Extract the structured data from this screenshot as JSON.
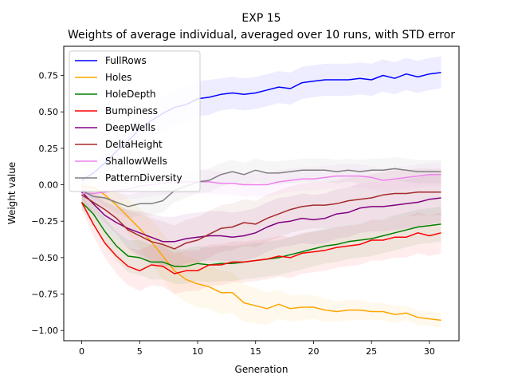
{
  "chart_data": {
    "type": "line",
    "title": "EXP 15",
    "subtitle": "Weights of average individual, averaged over 10 runs, with STD error",
    "xlabel": "Generation",
    "ylabel": "Weight value",
    "xlim": [
      -1.55,
      32.55
    ],
    "ylim": [
      -1.07,
      0.95
    ],
    "xticks": [
      0,
      5,
      10,
      15,
      20,
      25,
      30
    ],
    "yticks": [
      -1.0,
      -0.75,
      -0.5,
      -0.25,
      0.0,
      0.25,
      0.5,
      0.75
    ],
    "ytick_labels": [
      "−1.00",
      "−0.75",
      "−0.50",
      "−0.25",
      "0.00",
      "0.25",
      "0.50",
      "0.75"
    ],
    "legend_position": "top-left",
    "grid": false,
    "x": [
      0,
      1,
      2,
      3,
      4,
      5,
      6,
      7,
      8,
      9,
      10,
      11,
      12,
      13,
      14,
      15,
      16,
      17,
      18,
      19,
      20,
      21,
      22,
      23,
      24,
      25,
      26,
      27,
      28,
      29,
      30,
      31
    ],
    "series": [
      {
        "name": "FullRows",
        "color": "#0000ff",
        "values": [
          0.03,
          0.08,
          0.15,
          0.23,
          0.3,
          0.38,
          0.44,
          0.49,
          0.53,
          0.55,
          0.59,
          0.6,
          0.62,
          0.63,
          0.62,
          0.63,
          0.65,
          0.67,
          0.66,
          0.7,
          0.71,
          0.72,
          0.72,
          0.72,
          0.73,
          0.72,
          0.75,
          0.73,
          0.76,
          0.74,
          0.76,
          0.77
        ],
        "std": [
          0.05,
          0.06,
          0.08,
          0.1,
          0.11,
          0.12,
          0.12,
          0.12,
          0.12,
          0.12,
          0.12,
          0.12,
          0.11,
          0.11,
          0.11,
          0.11,
          0.11,
          0.11,
          0.11,
          0.11,
          0.11,
          0.11,
          0.11,
          0.11,
          0.11,
          0.11,
          0.11,
          0.11,
          0.11,
          0.11,
          0.11,
          0.11
        ]
      },
      {
        "name": "Holes",
        "color": "#ffa500",
        "values": [
          -0.01,
          -0.02,
          -0.07,
          -0.14,
          -0.22,
          -0.3,
          -0.39,
          -0.49,
          -0.59,
          -0.65,
          -0.68,
          -0.7,
          -0.74,
          -0.74,
          -0.81,
          -0.83,
          -0.85,
          -0.82,
          -0.85,
          -0.84,
          -0.84,
          -0.86,
          -0.87,
          -0.86,
          -0.86,
          -0.87,
          -0.87,
          -0.89,
          -0.88,
          -0.91,
          -0.92,
          -0.93
        ],
        "std": [
          0.05,
          0.06,
          0.08,
          0.1,
          0.12,
          0.14,
          0.15,
          0.16,
          0.16,
          0.16,
          0.16,
          0.15,
          0.15,
          0.14,
          0.13,
          0.12,
          0.11,
          0.1,
          0.09,
          0.09,
          0.08,
          0.08,
          0.07,
          0.07,
          0.07,
          0.06,
          0.06,
          0.06,
          0.05,
          0.05,
          0.05,
          0.05
        ]
      },
      {
        "name": "HoleDepth",
        "color": "#008000",
        "values": [
          -0.12,
          -0.2,
          -0.32,
          -0.42,
          -0.49,
          -0.5,
          -0.53,
          -0.53,
          -0.56,
          -0.56,
          -0.54,
          -0.55,
          -0.54,
          -0.54,
          -0.53,
          -0.52,
          -0.51,
          -0.5,
          -0.48,
          -0.46,
          -0.44,
          -0.42,
          -0.41,
          -0.39,
          -0.38,
          -0.37,
          -0.35,
          -0.33,
          -0.31,
          -0.29,
          -0.28,
          -0.27
        ],
        "std": [
          0.05,
          0.07,
          0.09,
          0.1,
          0.11,
          0.12,
          0.12,
          0.12,
          0.12,
          0.12,
          0.12,
          0.12,
          0.12,
          0.12,
          0.12,
          0.12,
          0.12,
          0.12,
          0.12,
          0.12,
          0.12,
          0.12,
          0.12,
          0.12,
          0.12,
          0.12,
          0.12,
          0.12,
          0.12,
          0.12,
          0.12,
          0.12
        ]
      },
      {
        "name": "Bumpiness",
        "color": "#ff0000",
        "values": [
          -0.12,
          -0.27,
          -0.4,
          -0.49,
          -0.56,
          -0.59,
          -0.55,
          -0.56,
          -0.61,
          -0.59,
          -0.59,
          -0.55,
          -0.55,
          -0.53,
          -0.53,
          -0.52,
          -0.51,
          -0.49,
          -0.5,
          -0.47,
          -0.46,
          -0.45,
          -0.43,
          -0.42,
          -0.41,
          -0.38,
          -0.38,
          -0.36,
          -0.36,
          -0.33,
          -0.35,
          -0.33
        ],
        "std": [
          0.05,
          0.08,
          0.1,
          0.12,
          0.13,
          0.14,
          0.14,
          0.14,
          0.14,
          0.14,
          0.14,
          0.14,
          0.14,
          0.14,
          0.14,
          0.14,
          0.14,
          0.14,
          0.14,
          0.14,
          0.14,
          0.14,
          0.14,
          0.14,
          0.14,
          0.14,
          0.14,
          0.14,
          0.14,
          0.14,
          0.14,
          0.14
        ]
      },
      {
        "name": "DeepWells",
        "color": "#800080",
        "values": [
          -0.05,
          -0.13,
          -0.21,
          -0.26,
          -0.3,
          -0.33,
          -0.36,
          -0.39,
          -0.39,
          -0.37,
          -0.36,
          -0.35,
          -0.35,
          -0.36,
          -0.35,
          -0.33,
          -0.29,
          -0.26,
          -0.25,
          -0.23,
          -0.24,
          -0.23,
          -0.2,
          -0.19,
          -0.16,
          -0.15,
          -0.15,
          -0.14,
          -0.13,
          -0.12,
          -0.1,
          -0.09
        ],
        "std": [
          0.05,
          0.07,
          0.09,
          0.11,
          0.13,
          0.15,
          0.16,
          0.17,
          0.17,
          0.17,
          0.17,
          0.17,
          0.17,
          0.17,
          0.17,
          0.17,
          0.17,
          0.17,
          0.17,
          0.17,
          0.17,
          0.17,
          0.17,
          0.17,
          0.17,
          0.17,
          0.17,
          0.17,
          0.17,
          0.17,
          0.17,
          0.17
        ]
      },
      {
        "name": "DeltaHeight",
        "color": "#a52a2a",
        "values": [
          -0.07,
          -0.12,
          -0.17,
          -0.23,
          -0.31,
          -0.35,
          -0.39,
          -0.41,
          -0.44,
          -0.4,
          -0.38,
          -0.34,
          -0.3,
          -0.29,
          -0.26,
          -0.27,
          -0.23,
          -0.2,
          -0.17,
          -0.15,
          -0.14,
          -0.14,
          -0.13,
          -0.11,
          -0.1,
          -0.09,
          -0.07,
          -0.06,
          -0.06,
          -0.05,
          -0.05,
          -0.05
        ],
        "std": [
          0.05,
          0.07,
          0.09,
          0.11,
          0.13,
          0.15,
          0.16,
          0.16,
          0.16,
          0.16,
          0.16,
          0.16,
          0.16,
          0.16,
          0.16,
          0.16,
          0.16,
          0.16,
          0.16,
          0.16,
          0.16,
          0.16,
          0.16,
          0.16,
          0.16,
          0.16,
          0.16,
          0.16,
          0.16,
          0.16,
          0.16,
          0.16
        ]
      },
      {
        "name": "ShallowWells",
        "color": "#ee82ee",
        "values": [
          -0.06,
          -0.06,
          -0.05,
          -0.04,
          -0.03,
          -0.01,
          0.0,
          0.01,
          0.02,
          0.02,
          0.02,
          0.02,
          0.01,
          0.01,
          0.0,
          0.0,
          0.0,
          0.02,
          0.03,
          0.04,
          0.04,
          0.05,
          0.06,
          0.06,
          0.06,
          0.05,
          0.03,
          0.04,
          0.05,
          0.06,
          0.07,
          0.07
        ],
        "std": [
          0.04,
          0.05,
          0.06,
          0.07,
          0.07,
          0.08,
          0.08,
          0.08,
          0.08,
          0.08,
          0.08,
          0.08,
          0.08,
          0.08,
          0.08,
          0.08,
          0.08,
          0.08,
          0.08,
          0.08,
          0.08,
          0.08,
          0.08,
          0.08,
          0.08,
          0.08,
          0.08,
          0.08,
          0.08,
          0.08,
          0.08,
          0.08
        ]
      },
      {
        "name": "PatternDiversity",
        "color": "#808080",
        "values": [
          -0.04,
          -0.08,
          -0.09,
          -0.12,
          -0.15,
          -0.13,
          -0.13,
          -0.11,
          -0.04,
          -0.01,
          0.02,
          0.03,
          0.07,
          0.09,
          0.07,
          0.1,
          0.08,
          0.08,
          0.09,
          0.1,
          0.1,
          0.1,
          0.09,
          0.1,
          0.09,
          0.1,
          0.1,
          0.11,
          0.1,
          0.09,
          0.09,
          0.09
        ],
        "std": [
          0.04,
          0.05,
          0.06,
          0.07,
          0.08,
          0.08,
          0.08,
          0.08,
          0.08,
          0.08,
          0.08,
          0.08,
          0.08,
          0.08,
          0.08,
          0.08,
          0.08,
          0.08,
          0.08,
          0.08,
          0.08,
          0.08,
          0.08,
          0.08,
          0.08,
          0.08,
          0.08,
          0.08,
          0.08,
          0.08,
          0.08,
          0.08
        ]
      }
    ]
  }
}
